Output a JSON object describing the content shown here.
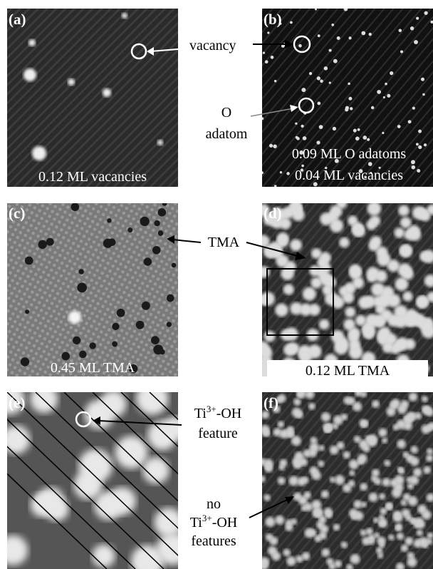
{
  "panels": {
    "a": {
      "label": "(a)",
      "caption": "0.12 ML vacancies"
    },
    "b": {
      "label": "(b)",
      "caption_1": "0.09 ML O adatoms",
      "caption_2": "0.04 ML vacancies"
    },
    "c": {
      "label": "(c)",
      "caption": "0.45 ML TMA"
    },
    "d": {
      "label": "(d)",
      "caption": "0.12 ML TMA"
    },
    "e": {
      "label": "(e)"
    },
    "f": {
      "label": "(f)"
    }
  },
  "annotations": {
    "vacancy": "vacancy",
    "o_adatom_1": "O",
    "o_adatom_2": "adatom",
    "tma": "TMA",
    "ti_oh": {
      "base": "Ti",
      "sup": "3+",
      "rest": "-OH",
      "line_2": "feature"
    },
    "no_ti_oh": {
      "line_1": "no",
      "base": "Ti",
      "sup": "3+",
      "rest": "-OH",
      "line_3": "features"
    }
  }
}
